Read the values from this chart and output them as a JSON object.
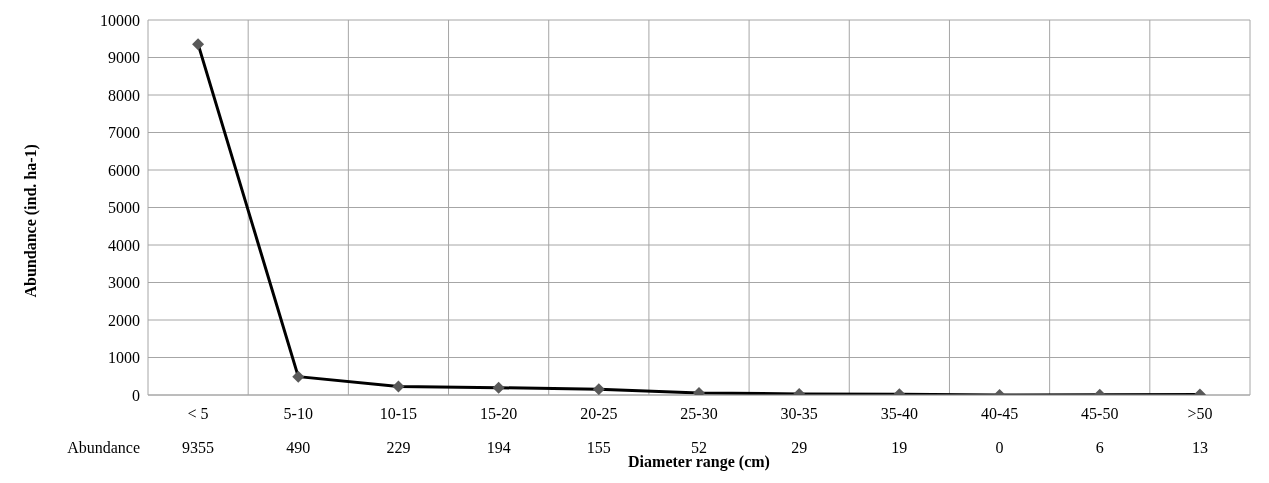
{
  "chart_data": {
    "type": "line",
    "xlabel": "Diameter range (cm)",
    "ylabel": "Abundance (ind. ha-1)",
    "categories": [
      "< 5",
      "5-10",
      "10-15",
      "15-20",
      "20-25",
      "25-30",
      "30-35",
      "35-40",
      "40-45",
      "45-50",
      ">50"
    ],
    "series": [
      {
        "name": "Abundance",
        "color": "#000000",
        "values": [
          9355,
          490,
          229,
          194,
          155,
          52,
          29,
          19,
          0,
          6,
          13
        ]
      }
    ],
    "ylim": [
      0,
      10000
    ],
    "yticks": [
      0,
      1000,
      2000,
      3000,
      4000,
      5000,
      6000,
      7000,
      8000,
      9000,
      10000
    ],
    "grid": true,
    "marker": "diamond",
    "line_style": "solid",
    "data_labels": true,
    "legend": false
  }
}
